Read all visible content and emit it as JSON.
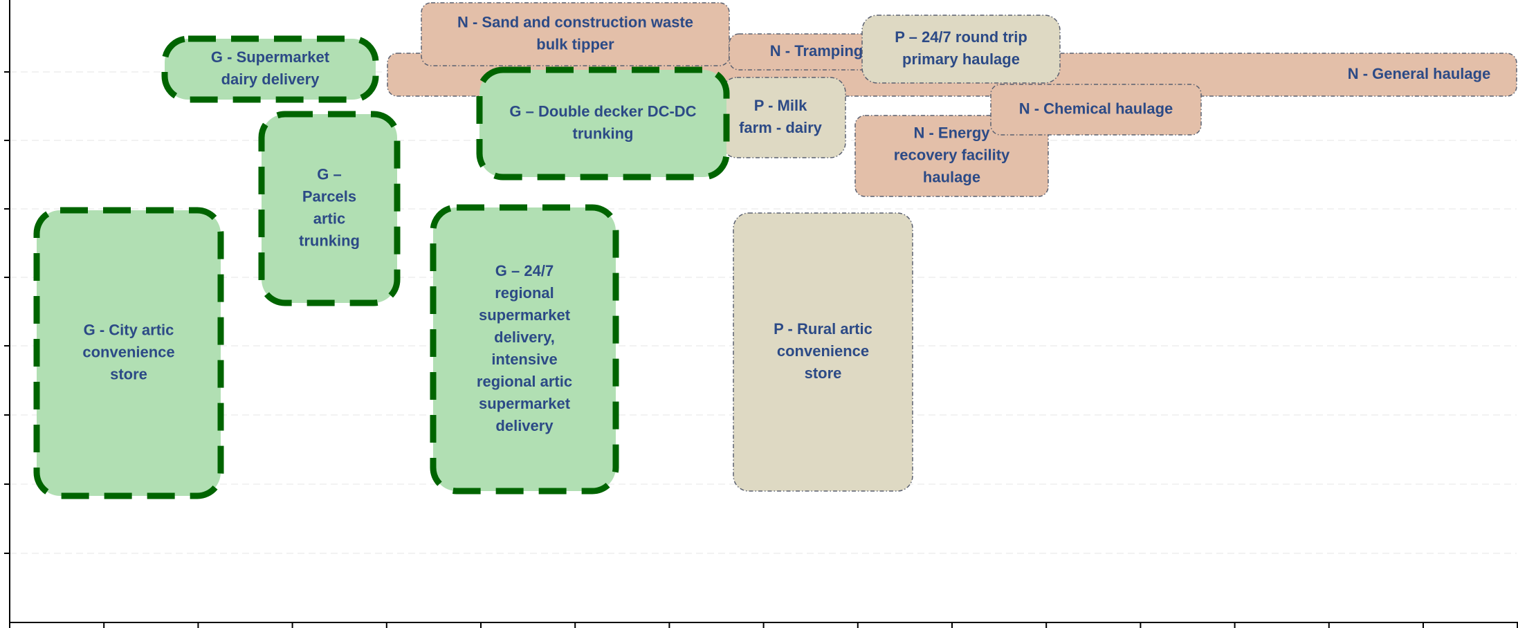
{
  "nodes": [
    {
      "kind": "N",
      "lines": [
        "N - General haulage"
      ]
    },
    {
      "kind": "N",
      "lines": [
        "N - Sand and construction waste",
        "bulk tipper"
      ]
    },
    {
      "kind": "N",
      "lines": [
        "N - Tramping"
      ]
    },
    {
      "kind": "P",
      "lines": [
        "P – 24/7 round trip",
        "primary haulage"
      ]
    },
    {
      "kind": "G",
      "lines": [
        "G - Supermarket",
        "dairy delivery"
      ]
    },
    {
      "kind": "P",
      "lines": [
        "P - Milk",
        "farm - dairy"
      ]
    },
    {
      "kind": "G",
      "lines": [
        "G – Double decker DC-DC",
        "trunking"
      ]
    },
    {
      "kind": "N",
      "lines": [
        "N - Energy",
        "recovery facility",
        "haulage"
      ]
    },
    {
      "kind": "N",
      "lines": [
        "N - Chemical haulage"
      ]
    },
    {
      "kind": "G",
      "lines": [
        "G –",
        "Parcels",
        "artic",
        "trunking"
      ]
    },
    {
      "kind": "G",
      "lines": [
        "G - City artic",
        "convenience",
        "store"
      ]
    },
    {
      "kind": "G",
      "lines": [
        "G – 24/7",
        "regional",
        "supermarket",
        "delivery,",
        "intensive",
        "regional artic",
        "supermarket",
        "delivery"
      ]
    },
    {
      "kind": "P",
      "lines": [
        "P - Rural artic",
        "convenience",
        "store"
      ]
    }
  ]
}
